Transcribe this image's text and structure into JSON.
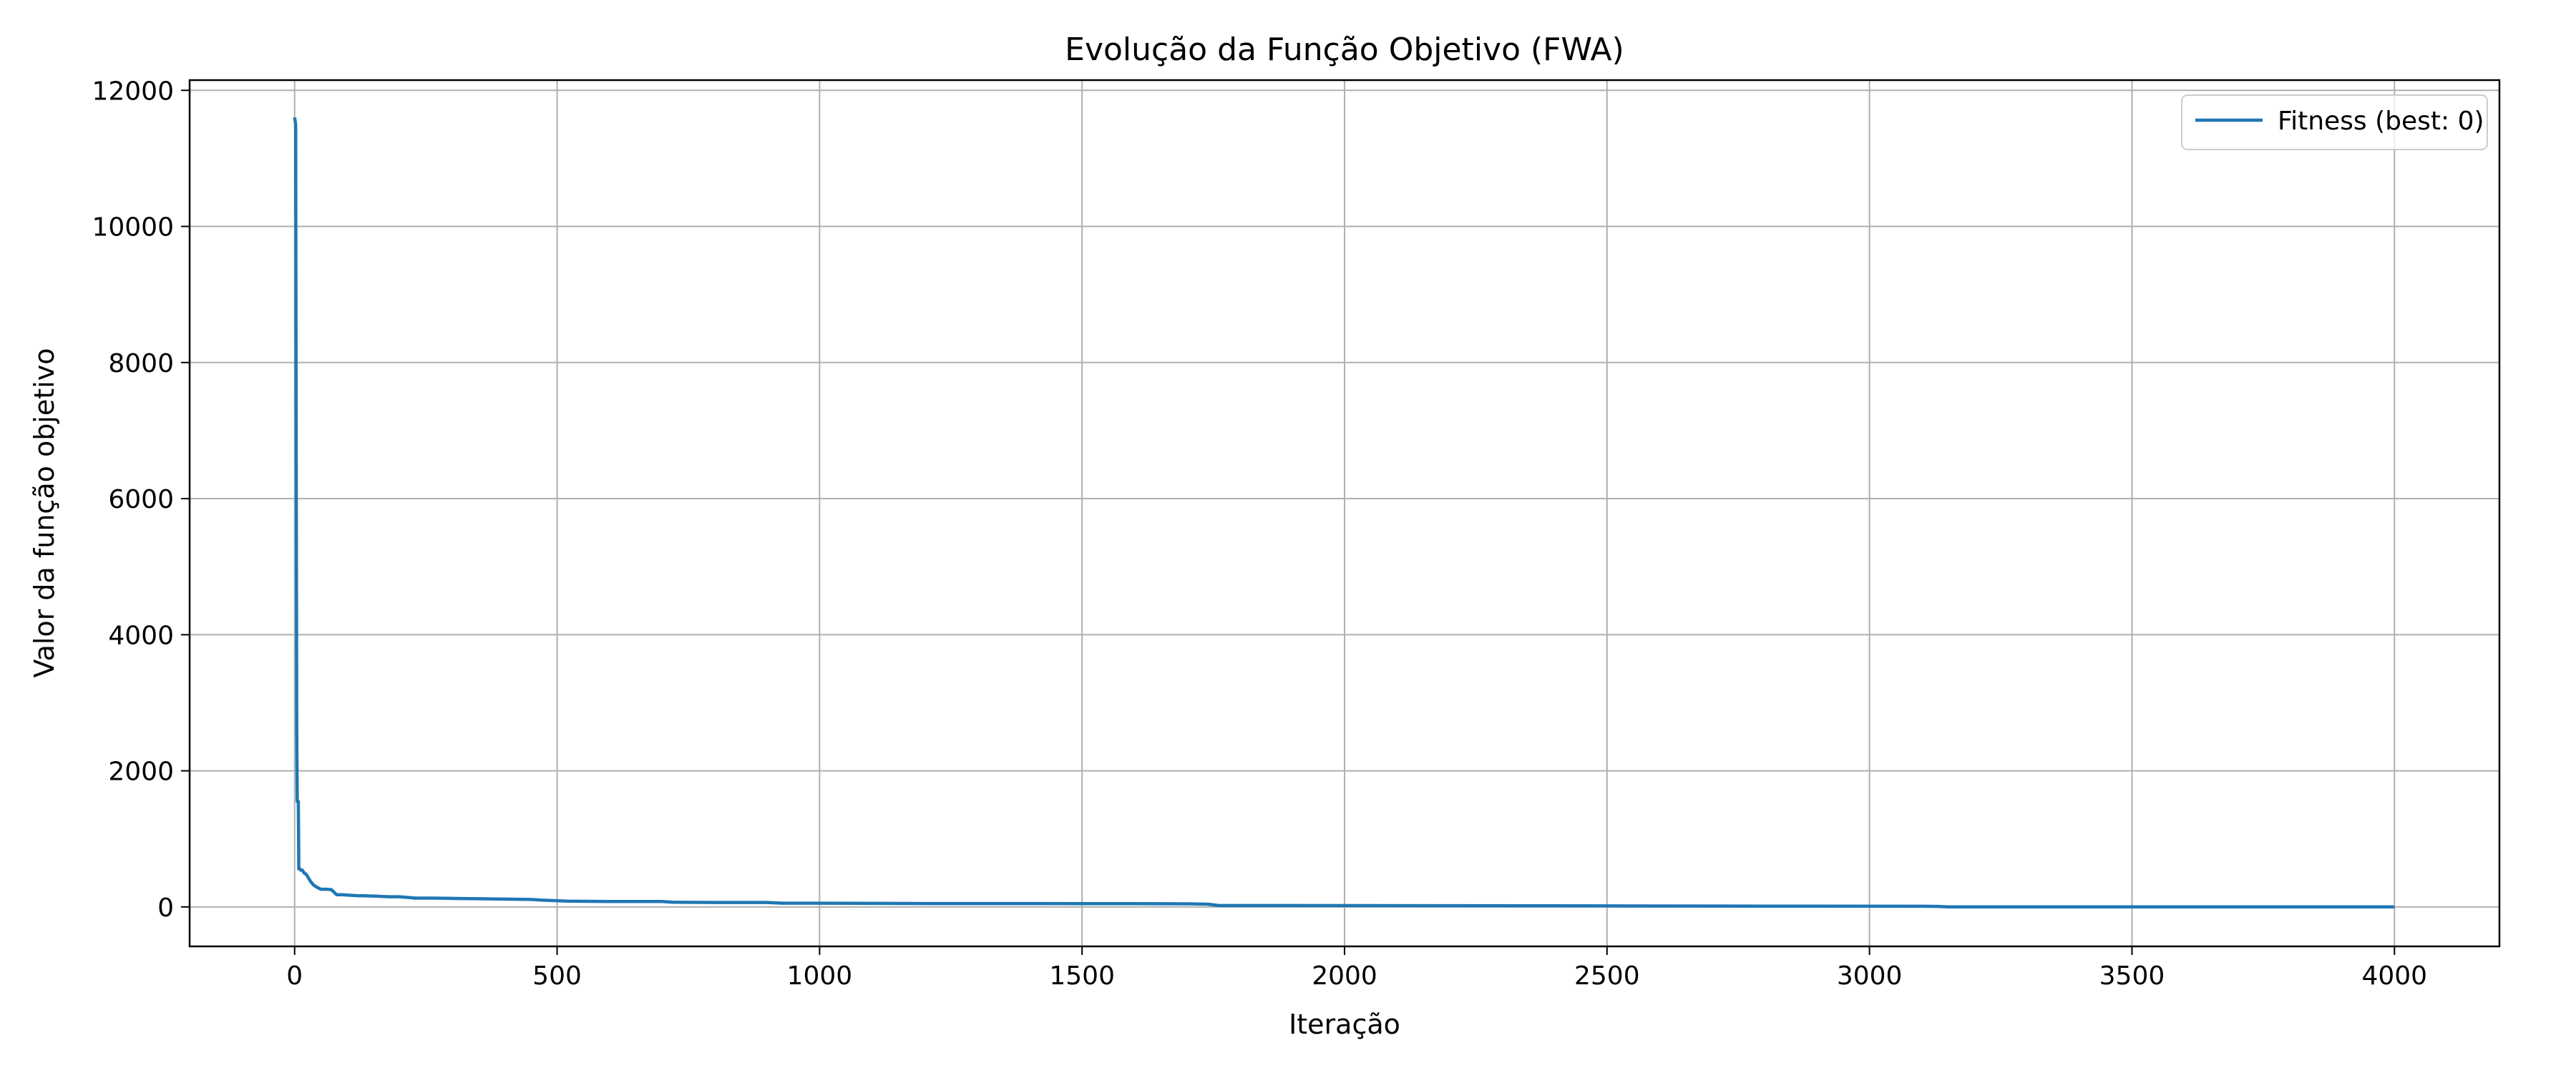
{
  "chart_data": {
    "type": "line",
    "title": "Evolução da Função Objetivo (FWA)",
    "xlabel": "Iteração",
    "ylabel": "Valor da função objetivo",
    "xlim": [
      -200,
      4200
    ],
    "ylim": [
      -580,
      12150
    ],
    "xticks": [
      0,
      500,
      1000,
      1500,
      2000,
      2500,
      3000,
      3500,
      4000
    ],
    "yticks": [
      0,
      2000,
      4000,
      6000,
      8000,
      10000,
      12000
    ],
    "grid": true,
    "legend_position": "top-right",
    "series": [
      {
        "name": "Fitness (best: 0)",
        "color": "#1f77b4",
        "x": [
          0,
          1,
          2,
          3,
          4,
          5,
          7,
          8,
          10,
          12,
          15,
          18,
          22,
          26,
          30,
          35,
          40,
          45,
          50,
          60,
          70,
          80,
          90,
          100,
          120,
          150,
          180,
          200,
          230,
          260,
          300,
          350,
          400,
          450,
          470,
          520,
          600,
          700,
          720,
          800,
          900,
          930,
          1000,
          1200,
          1400,
          1600,
          1700,
          1740,
          1760,
          1900,
          2200,
          2500,
          2800,
          3100,
          3130,
          3150,
          3400,
          3700,
          4000
        ],
        "y": [
          11600,
          11550,
          11500,
          7000,
          2600,
          1550,
          1550,
          560,
          560,
          540,
          540,
          500,
          480,
          430,
          380,
          330,
          300,
          280,
          260,
          260,
          255,
          180,
          180,
          175,
          165,
          160,
          150,
          150,
          130,
          130,
          125,
          120,
          115,
          110,
          100,
          85,
          80,
          80,
          70,
          65,
          65,
          55,
          55,
          50,
          50,
          48,
          45,
          40,
          20,
          20,
          18,
          15,
          12,
          10,
          8,
          0,
          0,
          0,
          0
        ]
      }
    ]
  }
}
